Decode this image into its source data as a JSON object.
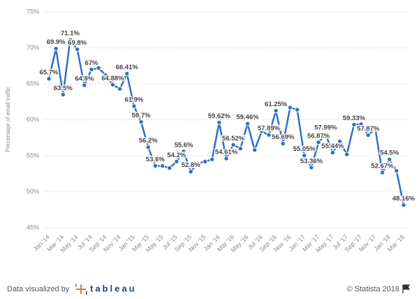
{
  "chart_data": {
    "type": "line",
    "y_label": "Percentage of email traffic",
    "categories": [
      "Jan '14",
      null,
      "Mar '14",
      null,
      "May '14",
      null,
      "Jul '14",
      null,
      "Sep '14",
      null,
      "Nov '14",
      null,
      "Jan '15",
      null,
      "Mar '15",
      null,
      "May '15",
      null,
      "Jul '15",
      null,
      "Sep '15",
      null,
      "Nov '15",
      null,
      "Jan '16",
      null,
      "Mar '16",
      null,
      "May '16",
      null,
      "Jul '16",
      null,
      "Sep '16",
      null,
      "Nov '16",
      null,
      "Jan '17",
      null,
      "Mar '17",
      null,
      "May '17",
      null,
      "Jul '17",
      null,
      "Sep '17",
      null,
      "Nov '17",
      null,
      "Jan '18",
      null,
      "Mar '18"
    ],
    "series": [
      {
        "name": "Percentage of email traffic",
        "color": "#2f6fc9",
        "values": [
          65.7,
          69.9,
          63.5,
          71.1,
          69.8,
          64.8,
          67,
          67.2,
          66.2,
          64.88,
          64.3,
          66.41,
          61.9,
          59.7,
          56.2,
          53.6,
          53.6,
          53.3,
          54.2,
          55.6,
          52.8,
          54.0,
          54.2,
          54.5,
          59.62,
          54.61,
          56.52,
          56.0,
          59.46,
          55.8,
          58.4,
          57.89,
          61.25,
          56.69,
          61.7,
          61.4,
          55.05,
          53.36,
          56.87,
          57.99,
          55.44,
          57.0,
          55.2,
          59.33,
          59.4,
          57.87,
          58.8,
          52.67,
          54.5,
          52.9,
          48.16
        ],
        "value_labels": [
          "65.7%",
          "69.9%",
          "63.5%",
          "71.1%",
          "69.8%",
          "64.8%",
          "67%",
          null,
          null,
          "64.88%",
          null,
          "66.41%",
          "61.9%",
          "59.7%",
          "56.2%",
          "53.6%",
          null,
          null,
          "54.2%",
          "55.6%",
          "52.8%",
          null,
          null,
          null,
          "59.62%",
          "54.61%",
          "56.52%",
          null,
          "59.46%",
          null,
          null,
          "57.89%",
          "61.25%",
          "56.69%",
          null,
          null,
          "55.05%",
          "53.36%",
          "56.87%",
          "57.99%",
          "55.44%",
          null,
          null,
          "59.33%",
          null,
          "57.87%",
          null,
          "52.67%",
          "54.5%",
          null,
          "48.16%"
        ]
      }
    ],
    "ylim": [
      45,
      75
    ],
    "yticks": [
      {
        "value": 45,
        "label": "45%"
      },
      {
        "value": 50,
        "label": "50%"
      },
      {
        "value": 55,
        "label": "55%"
      },
      {
        "value": 60,
        "label": "60%"
      },
      {
        "value": 65,
        "label": "65%"
      },
      {
        "value": 70,
        "label": "70%"
      },
      {
        "value": 75,
        "label": "75%"
      }
    ],
    "grid": true
  },
  "footer": {
    "credit": "Data visualized by",
    "brand": "tableau",
    "copyright": "© Statista 2018"
  }
}
